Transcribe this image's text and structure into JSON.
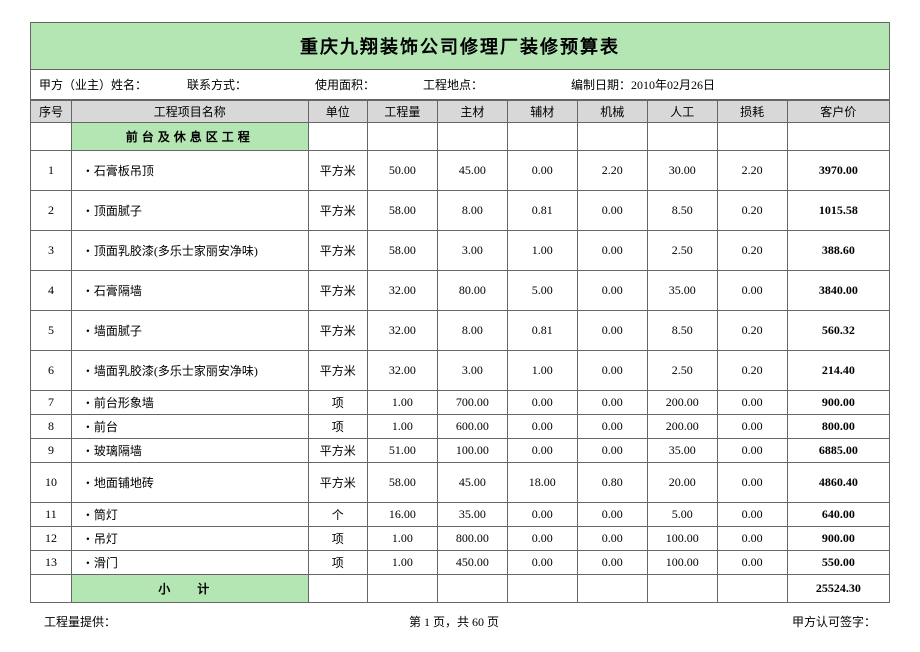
{
  "title": "重庆九翔装饰公司修理厂装修预算表",
  "meta": {
    "owner_label": "甲方（业主）姓名：",
    "contact_label": "联系方式：",
    "area_label": "使用面积：",
    "addr_label": "工程地点：",
    "date_label": "编制日期：2010年02月26日"
  },
  "headers": {
    "seq": "序号",
    "name": "工程项目名称",
    "unit": "单位",
    "qty": "工程量",
    "main": "主材",
    "aux": "辅材",
    "mach": "机械",
    "labor": "人工",
    "loss": "损耗",
    "price": "客户价"
  },
  "section": "前台及休息区工程",
  "rows": [
    {
      "h": "h-tall",
      "seq": "1",
      "name": "・石膏板吊顶",
      "unit": "平方米",
      "qty": "50.00",
      "main": "45.00",
      "aux": "0.00",
      "mach": "2.20",
      "labor": "30.00",
      "loss": "2.20",
      "price": "3970.00"
    },
    {
      "h": "h-tall",
      "seq": "2",
      "name": "・顶面腻子",
      "unit": "平方米",
      "qty": "58.00",
      "main": "8.00",
      "aux": "0.81",
      "mach": "0.00",
      "labor": "8.50",
      "loss": "0.20",
      "price": "1015.58"
    },
    {
      "h": "h-tall",
      "seq": "3",
      "name": "・顶面乳胶漆(多乐士家丽安净味)",
      "unit": "平方米",
      "qty": "58.00",
      "main": "3.00",
      "aux": "1.00",
      "mach": "0.00",
      "labor": "2.50",
      "loss": "0.20",
      "price": "388.60"
    },
    {
      "h": "h-tall",
      "seq": "4",
      "name": "・石膏隔墙",
      "unit": "平方米",
      "qty": "32.00",
      "main": "80.00",
      "aux": "5.00",
      "mach": "0.00",
      "labor": "35.00",
      "loss": "0.00",
      "price": "3840.00"
    },
    {
      "h": "h-tall",
      "seq": "5",
      "name": "・墙面腻子",
      "unit": "平方米",
      "qty": "32.00",
      "main": "8.00",
      "aux": "0.81",
      "mach": "0.00",
      "labor": "8.50",
      "loss": "0.20",
      "price": "560.32"
    },
    {
      "h": "h-tall",
      "seq": "6",
      "name": "・墙面乳胶漆(多乐士家丽安净味)",
      "unit": "平方米",
      "qty": "32.00",
      "main": "3.00",
      "aux": "1.00",
      "mach": "0.00",
      "labor": "2.50",
      "loss": "0.20",
      "price": "214.40"
    },
    {
      "h": "h-short",
      "seq": "7",
      "name": "・前台形象墙",
      "unit": "项",
      "qty": "1.00",
      "main": "700.00",
      "aux": "0.00",
      "mach": "0.00",
      "labor": "200.00",
      "loss": "0.00",
      "price": "900.00"
    },
    {
      "h": "h-short",
      "seq": "8",
      "name": "・前台",
      "unit": "项",
      "qty": "1.00",
      "main": "600.00",
      "aux": "0.00",
      "mach": "0.00",
      "labor": "200.00",
      "loss": "0.00",
      "price": "800.00"
    },
    {
      "h": "h-short",
      "seq": "9",
      "name": "・玻璃隔墙",
      "unit": "平方米",
      "qty": "51.00",
      "main": "100.00",
      "aux": "0.00",
      "mach": "0.00",
      "labor": "35.00",
      "loss": "0.00",
      "price": "6885.00"
    },
    {
      "h": "h-tall",
      "seq": "10",
      "name": "・地面铺地砖",
      "unit": "平方米",
      "qty": "58.00",
      "main": "45.00",
      "aux": "18.00",
      "mach": "0.80",
      "labor": "20.00",
      "loss": "0.00",
      "price": "4860.40"
    },
    {
      "h": "h-short",
      "seq": "11",
      "name": "・筒灯",
      "unit": "个",
      "qty": "16.00",
      "main": "35.00",
      "aux": "0.00",
      "mach": "0.00",
      "labor": "5.00",
      "loss": "0.00",
      "price": "640.00"
    },
    {
      "h": "h-short",
      "seq": "12",
      "name": "・吊灯",
      "unit": "项",
      "qty": "1.00",
      "main": "800.00",
      "aux": "0.00",
      "mach": "0.00",
      "labor": "100.00",
      "loss": "0.00",
      "price": "900.00"
    },
    {
      "h": "h-short",
      "seq": "13",
      "name": "・滑门",
      "unit": "项",
      "qty": "1.00",
      "main": "450.00",
      "aux": "0.00",
      "mach": "0.00",
      "labor": "100.00",
      "loss": "0.00",
      "price": "550.00"
    }
  ],
  "subtotal": {
    "label": "小  计",
    "price": "25524.30"
  },
  "footer": {
    "left": "工程量提供：",
    "center_a": "第 1 页，共",
    "center_b": "60",
    "center_c": "页",
    "right": "甲方认可签字："
  },
  "colors": {
    "section_bg": "#b3e6b3",
    "header_bg": "#d8d8d8",
    "border": "#666666"
  }
}
